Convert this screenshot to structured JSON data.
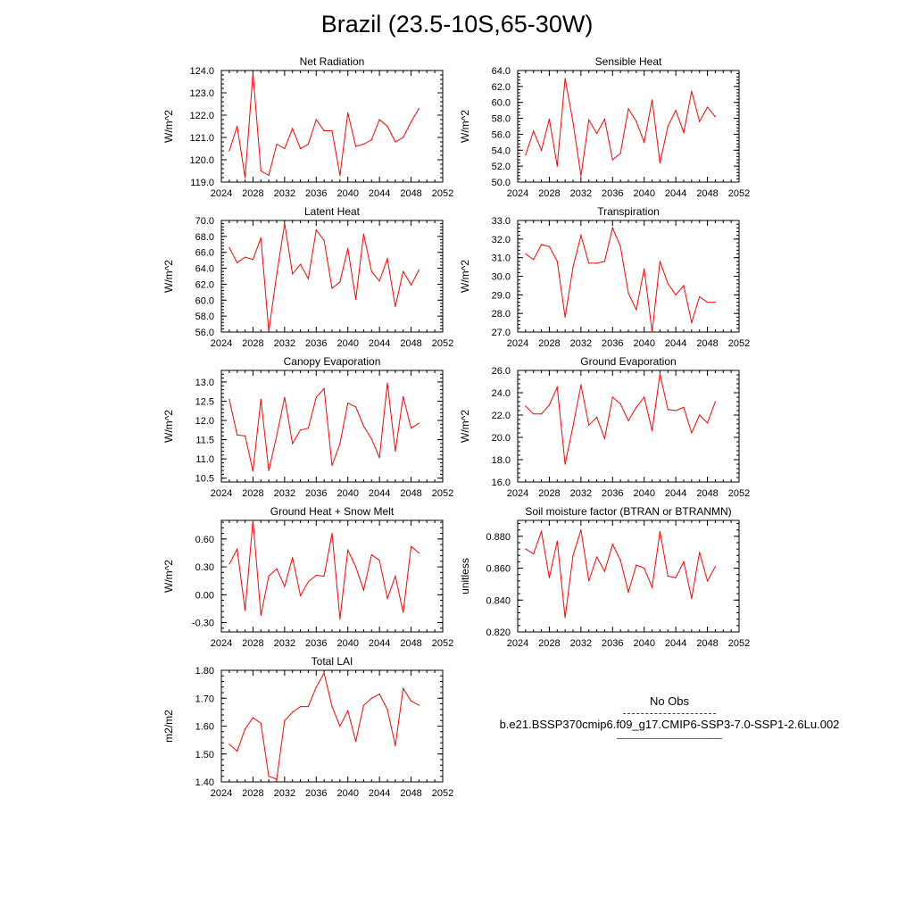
{
  "figure": {
    "title": "Brazil (23.5-10S,65-30W)"
  },
  "legend": {
    "obs_label": "No Obs",
    "model_label": "b.e21.BSSP370cmip6.f09_g17.CMIP6-SSP3-7.0-SSP1-2.6Lu.002"
  },
  "colors": {
    "model_line": "#ff0000",
    "obs_line": "#2a3a8c"
  },
  "chart_data": [
    {
      "type": "line",
      "title": "Net Radiation",
      "ylabel": "W/m^2",
      "xlabel": "",
      "xlim": [
        2024,
        2052
      ],
      "xticks": [
        "2024",
        "2028",
        "2032",
        "2036",
        "2040",
        "2044",
        "2048",
        "2052"
      ],
      "ylim": [
        119.0,
        124.0
      ],
      "yticks": [
        "119.0",
        "120.0",
        "121.0",
        "122.0",
        "123.0",
        "124.0"
      ],
      "x": [
        2025,
        2026,
        2027,
        2028,
        2029,
        2030,
        2031,
        2032,
        2033,
        2034,
        2035,
        2036,
        2037,
        2038,
        2039,
        2040,
        2041,
        2042,
        2043,
        2044,
        2045,
        2046,
        2047,
        2048,
        2049
      ],
      "y": [
        120.4,
        121.5,
        119.2,
        123.9,
        119.5,
        119.3,
        120.7,
        120.5,
        121.4,
        120.5,
        120.7,
        121.8,
        121.3,
        121.3,
        119.3,
        122.1,
        120.6,
        120.7,
        120.9,
        121.8,
        121.5,
        120.8,
        121.0,
        121.7,
        122.3
      ]
    },
    {
      "type": "line",
      "title": "Sensible Heat",
      "ylabel": "W/m^2",
      "xlabel": "",
      "xlim": [
        2024,
        2052
      ],
      "xticks": [
        "2024",
        "2028",
        "2032",
        "2036",
        "2040",
        "2044",
        "2048",
        "2052"
      ],
      "ylim": [
        50.0,
        64.0
      ],
      "yticks": [
        "50.0",
        "52.0",
        "54.0",
        "56.0",
        "58.0",
        "60.0",
        "62.0",
        "64.0"
      ],
      "x": [
        2025,
        2026,
        2027,
        2028,
        2029,
        2030,
        2031,
        2032,
        2033,
        2034,
        2035,
        2036,
        2037,
        2038,
        2039,
        2040,
        2041,
        2042,
        2043,
        2044,
        2045,
        2046,
        2047,
        2048,
        2049
      ],
      "y": [
        53.4,
        56.4,
        54.0,
        57.9,
        52.0,
        63.0,
        57.5,
        50.8,
        57.8,
        56.1,
        57.9,
        52.8,
        53.6,
        59.2,
        57.6,
        55.0,
        60.3,
        52.4,
        57.0,
        59.0,
        56.2,
        61.4,
        57.6,
        59.4,
        58.2
      ]
    },
    {
      "type": "line",
      "title": "Latent Heat",
      "ylabel": "W/m^2",
      "xlabel": "",
      "xlim": [
        2024,
        2052
      ],
      "xticks": [
        "2024",
        "2028",
        "2032",
        "2036",
        "2040",
        "2044",
        "2048",
        "2052"
      ],
      "ylim": [
        56.0,
        70.0
      ],
      "yticks": [
        "56.0",
        "58.0",
        "60.0",
        "62.0",
        "64.0",
        "66.0",
        "68.0",
        "70.0"
      ],
      "x": [
        2025,
        2026,
        2027,
        2028,
        2029,
        2030,
        2031,
        2032,
        2033,
        2034,
        2035,
        2036,
        2037,
        2038,
        2039,
        2040,
        2041,
        2042,
        2043,
        2044,
        2045,
        2046,
        2047,
        2048,
        2049
      ],
      "y": [
        66.6,
        64.7,
        65.4,
        65.1,
        67.8,
        56.1,
        63.2,
        69.6,
        63.3,
        64.5,
        62.7,
        68.8,
        67.5,
        61.5,
        62.3,
        66.5,
        60.1,
        68.3,
        63.6,
        62.4,
        65.2,
        59.2,
        63.6,
        61.9,
        63.8
      ]
    },
    {
      "type": "line",
      "title": "Transpiration",
      "ylabel": "W/m^2",
      "xlabel": "",
      "xlim": [
        2024,
        2052
      ],
      "xticks": [
        "2024",
        "2028",
        "2032",
        "2036",
        "2040",
        "2044",
        "2048",
        "2052"
      ],
      "ylim": [
        27.0,
        33.0
      ],
      "yticks": [
        "27.0",
        "28.0",
        "29.0",
        "30.0",
        "31.0",
        "32.0",
        "33.0"
      ],
      "x": [
        2025,
        2026,
        2027,
        2028,
        2029,
        2030,
        2031,
        2032,
        2033,
        2034,
        2035,
        2036,
        2037,
        2038,
        2039,
        2040,
        2041,
        2042,
        2043,
        2044,
        2045,
        2046,
        2047,
        2048,
        2049
      ],
      "y": [
        31.2,
        30.9,
        31.7,
        31.6,
        30.8,
        27.8,
        30.5,
        32.2,
        30.7,
        30.7,
        30.8,
        32.6,
        31.6,
        29.1,
        28.2,
        30.4,
        27.0,
        30.8,
        29.6,
        29.0,
        29.5,
        27.5,
        28.9,
        28.6,
        28.6
      ]
    },
    {
      "type": "line",
      "title": "Canopy Evaporation",
      "ylabel": "W/m^2",
      "xlabel": "",
      "xlim": [
        2024,
        2052
      ],
      "xticks": [
        "2024",
        "2028",
        "2032",
        "2036",
        "2040",
        "2044",
        "2048",
        "2052"
      ],
      "ylim": [
        10.4,
        13.3
      ],
      "yticks": [
        "10.5",
        "11.0",
        "11.5",
        "12.0",
        "12.5",
        "13.0"
      ],
      "x": [
        2025,
        2026,
        2027,
        2028,
        2029,
        2030,
        2031,
        2032,
        2033,
        2034,
        2035,
        2036,
        2037,
        2038,
        2039,
        2040,
        2041,
        2042,
        2043,
        2044,
        2045,
        2046,
        2047,
        2048,
        2049
      ],
      "y": [
        12.55,
        11.62,
        11.6,
        10.68,
        12.55,
        10.7,
        11.6,
        12.6,
        11.4,
        11.75,
        11.8,
        12.6,
        12.83,
        10.83,
        11.4,
        12.45,
        12.35,
        11.85,
        11.52,
        11.03,
        12.97,
        11.2,
        12.62,
        11.8,
        11.93
      ]
    },
    {
      "type": "line",
      "title": "Ground Evaporation",
      "ylabel": "W/m^2",
      "xlabel": "",
      "xlim": [
        2024,
        2052
      ],
      "xticks": [
        "2024",
        "2028",
        "2032",
        "2036",
        "2040",
        "2044",
        "2048",
        "2052"
      ],
      "ylim": [
        16.0,
        26.0
      ],
      "yticks": [
        "16.0",
        "18.0",
        "20.0",
        "22.0",
        "24.0",
        "26.0"
      ],
      "x": [
        2025,
        2026,
        2027,
        2028,
        2029,
        2030,
        2031,
        2032,
        2033,
        2034,
        2035,
        2036,
        2037,
        2038,
        2039,
        2040,
        2041,
        2042,
        2043,
        2044,
        2045,
        2046,
        2047,
        2048,
        2049
      ],
      "y": [
        22.8,
        22.1,
        22.1,
        22.9,
        24.5,
        17.6,
        21.0,
        24.7,
        21.1,
        21.8,
        19.9,
        23.6,
        23.0,
        21.5,
        22.7,
        23.6,
        20.6,
        25.7,
        22.5,
        22.4,
        22.7,
        20.4,
        22.0,
        21.3,
        23.2
      ]
    },
    {
      "type": "line",
      "title": "Ground Heat + Snow Melt",
      "ylabel": "W/m^2",
      "xlabel": "",
      "xlim": [
        2024,
        2052
      ],
      "xticks": [
        "2024",
        "2028",
        "2032",
        "2036",
        "2040",
        "2044",
        "2048",
        "2052"
      ],
      "ylim": [
        -0.4,
        0.8
      ],
      "yticks": [
        "-0.30",
        "0.00",
        "0.30",
        "0.60"
      ],
      "x": [
        2025,
        2026,
        2027,
        2028,
        2029,
        2030,
        2031,
        2032,
        2033,
        2034,
        2035,
        2036,
        2037,
        2038,
        2039,
        2040,
        2041,
        2042,
        2043,
        2044,
        2045,
        2046,
        2047,
        2048,
        2049
      ],
      "y": [
        0.33,
        0.49,
        -0.17,
        0.8,
        -0.22,
        0.2,
        0.28,
        0.09,
        0.4,
        -0.01,
        0.14,
        0.21,
        0.2,
        0.66,
        -0.26,
        0.48,
        0.3,
        0.05,
        0.43,
        0.37,
        -0.04,
        0.2,
        -0.19,
        0.52,
        0.45
      ]
    },
    {
      "type": "line",
      "title": "Soil moisture factor (BTRAN or BTRANMN)",
      "ylabel": "unitless",
      "xlabel": "",
      "xlim": [
        2024,
        2052
      ],
      "xticks": [
        "2024",
        "2028",
        "2032",
        "2036",
        "2040",
        "2044",
        "2048",
        "2052"
      ],
      "ylim": [
        0.82,
        0.89
      ],
      "yticks": [
        "0.820",
        "0.840",
        "0.860",
        "0.880"
      ],
      "x": [
        2025,
        2026,
        2027,
        2028,
        2029,
        2030,
        2031,
        2032,
        2033,
        2034,
        2035,
        2036,
        2037,
        2038,
        2039,
        2040,
        2041,
        2042,
        2043,
        2044,
        2045,
        2046,
        2047,
        2048,
        2049
      ],
      "y": [
        0.872,
        0.869,
        0.883,
        0.854,
        0.877,
        0.829,
        0.868,
        0.884,
        0.852,
        0.867,
        0.858,
        0.875,
        0.865,
        0.845,
        0.862,
        0.86,
        0.848,
        0.883,
        0.855,
        0.854,
        0.864,
        0.841,
        0.87,
        0.852,
        0.861
      ]
    },
    {
      "type": "line",
      "title": "Total LAI",
      "ylabel": "m2/m2",
      "xlabel": "",
      "xlim": [
        2024,
        2052
      ],
      "xticks": [
        "2024",
        "2028",
        "2032",
        "2036",
        "2040",
        "2044",
        "2048",
        "2052"
      ],
      "ylim": [
        1.4,
        1.8
      ],
      "yticks": [
        "1.40",
        "1.50",
        "1.60",
        "1.70",
        "1.80"
      ],
      "x": [
        2025,
        2026,
        2027,
        2028,
        2029,
        2030,
        2031,
        2032,
        2033,
        2034,
        2035,
        2036,
        2037,
        2038,
        2039,
        2040,
        2041,
        2042,
        2043,
        2044,
        2045,
        2046,
        2047,
        2048,
        2049
      ],
      "y": [
        1.535,
        1.51,
        1.59,
        1.63,
        1.61,
        1.42,
        1.41,
        1.62,
        1.65,
        1.67,
        1.67,
        1.74,
        1.79,
        1.67,
        1.6,
        1.655,
        1.545,
        1.675,
        1.7,
        1.715,
        1.66,
        1.53,
        1.735,
        1.69,
        1.675
      ]
    }
  ]
}
